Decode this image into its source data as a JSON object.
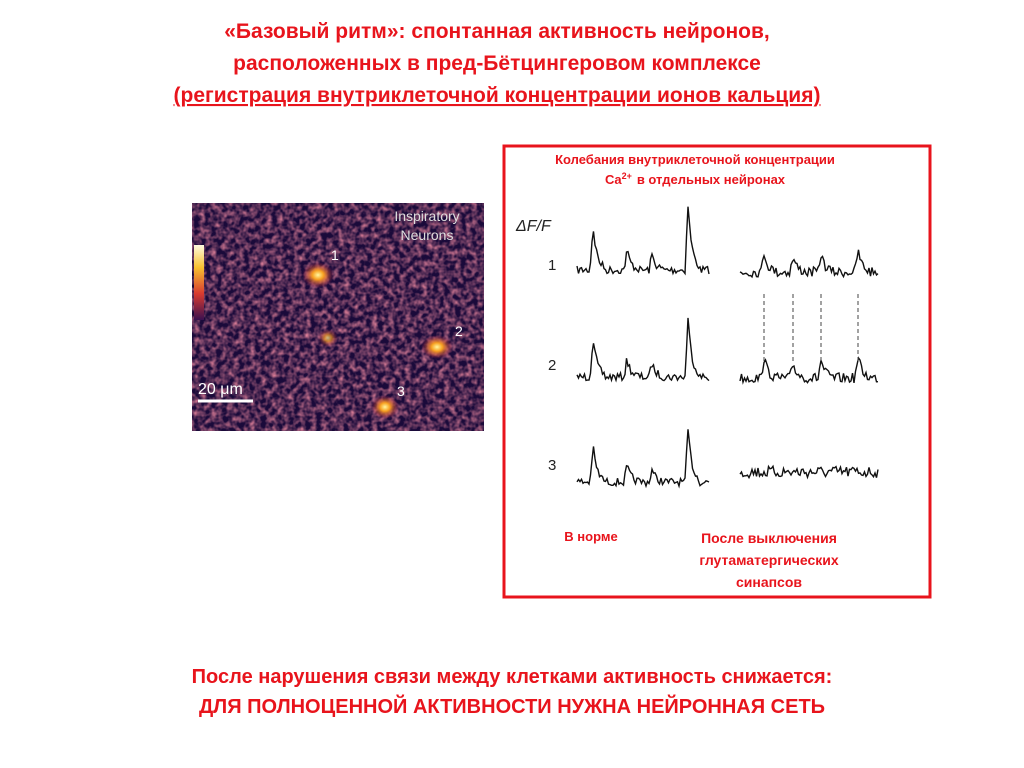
{
  "title": [
    "«Базовый ритм»: спонтанная активность нейронов,",
    "расположенных  в пред-Бётцингеровом комплексе",
    "(регистрация внутриклеточной концентрации ионов кальция)"
  ],
  "image": {
    "caption": [
      "Inspiratory",
      "Neurons"
    ],
    "labels": [
      "1",
      "2",
      "3"
    ],
    "scale": "20 μm"
  },
  "panel": {
    "title": [
      "Колебания внутриклеточной концентрации",
      "Ca",
      "2+",
      "в отдельных нейронах"
    ],
    "axis_label": "ΔF/F",
    "trace_labels": [
      "1",
      "2",
      "3"
    ],
    "normal": "В норме",
    "after": [
      "После выключения",
      "глутаматергических",
      "синапсов"
    ]
  },
  "conclusion": [
    "После нарушения связи между клетками активность снижается:",
    "ДЛЯ ПОЛНОЦЕННОЙ АКТИВНОСТИ НУЖНА НЕЙРОННАЯ СЕТЬ"
  ]
}
